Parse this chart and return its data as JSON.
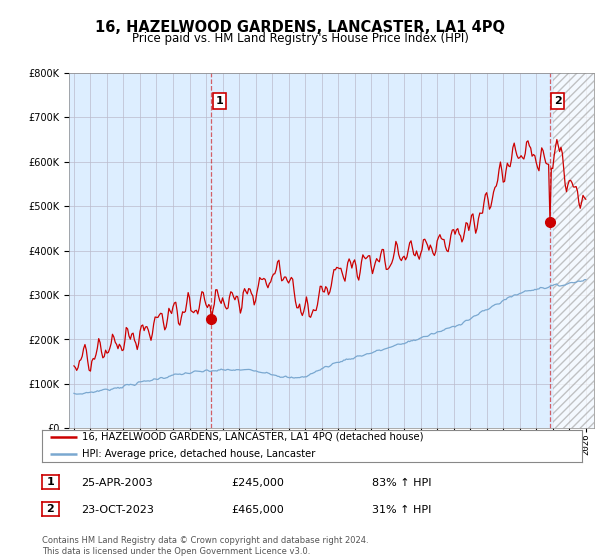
{
  "title": "16, HAZELWOOD GARDENS, LANCASTER, LA1 4PQ",
  "subtitle": "Price paid vs. HM Land Registry's House Price Index (HPI)",
  "ylim": [
    0,
    800000
  ],
  "yticks": [
    0,
    100000,
    200000,
    300000,
    400000,
    500000,
    600000,
    700000,
    800000
  ],
  "sale1_date_num": 2003.31,
  "sale1_price": 245000,
  "sale1_label": "1",
  "sale1_text": "25-APR-2003",
  "sale1_pct": "83% ↑ HPI",
  "sale2_date_num": 2023.81,
  "sale2_price": 465000,
  "sale2_label": "2",
  "sale2_text": "23-OCT-2023",
  "sale2_pct": "31% ↑ HPI",
  "legend_line1": "16, HAZELWOOD GARDENS, LANCASTER, LA1 4PQ (detached house)",
  "legend_line2": "HPI: Average price, detached house, Lancaster",
  "footnote": "Contains HM Land Registry data © Crown copyright and database right 2024.\nThis data is licensed under the Open Government Licence v3.0.",
  "red_color": "#cc0000",
  "blue_color": "#7aa8d0",
  "plot_bg": "#ddeeff",
  "hatch_start": 2024.0,
  "xlim_start": 1994.7,
  "xlim_end": 2026.5
}
